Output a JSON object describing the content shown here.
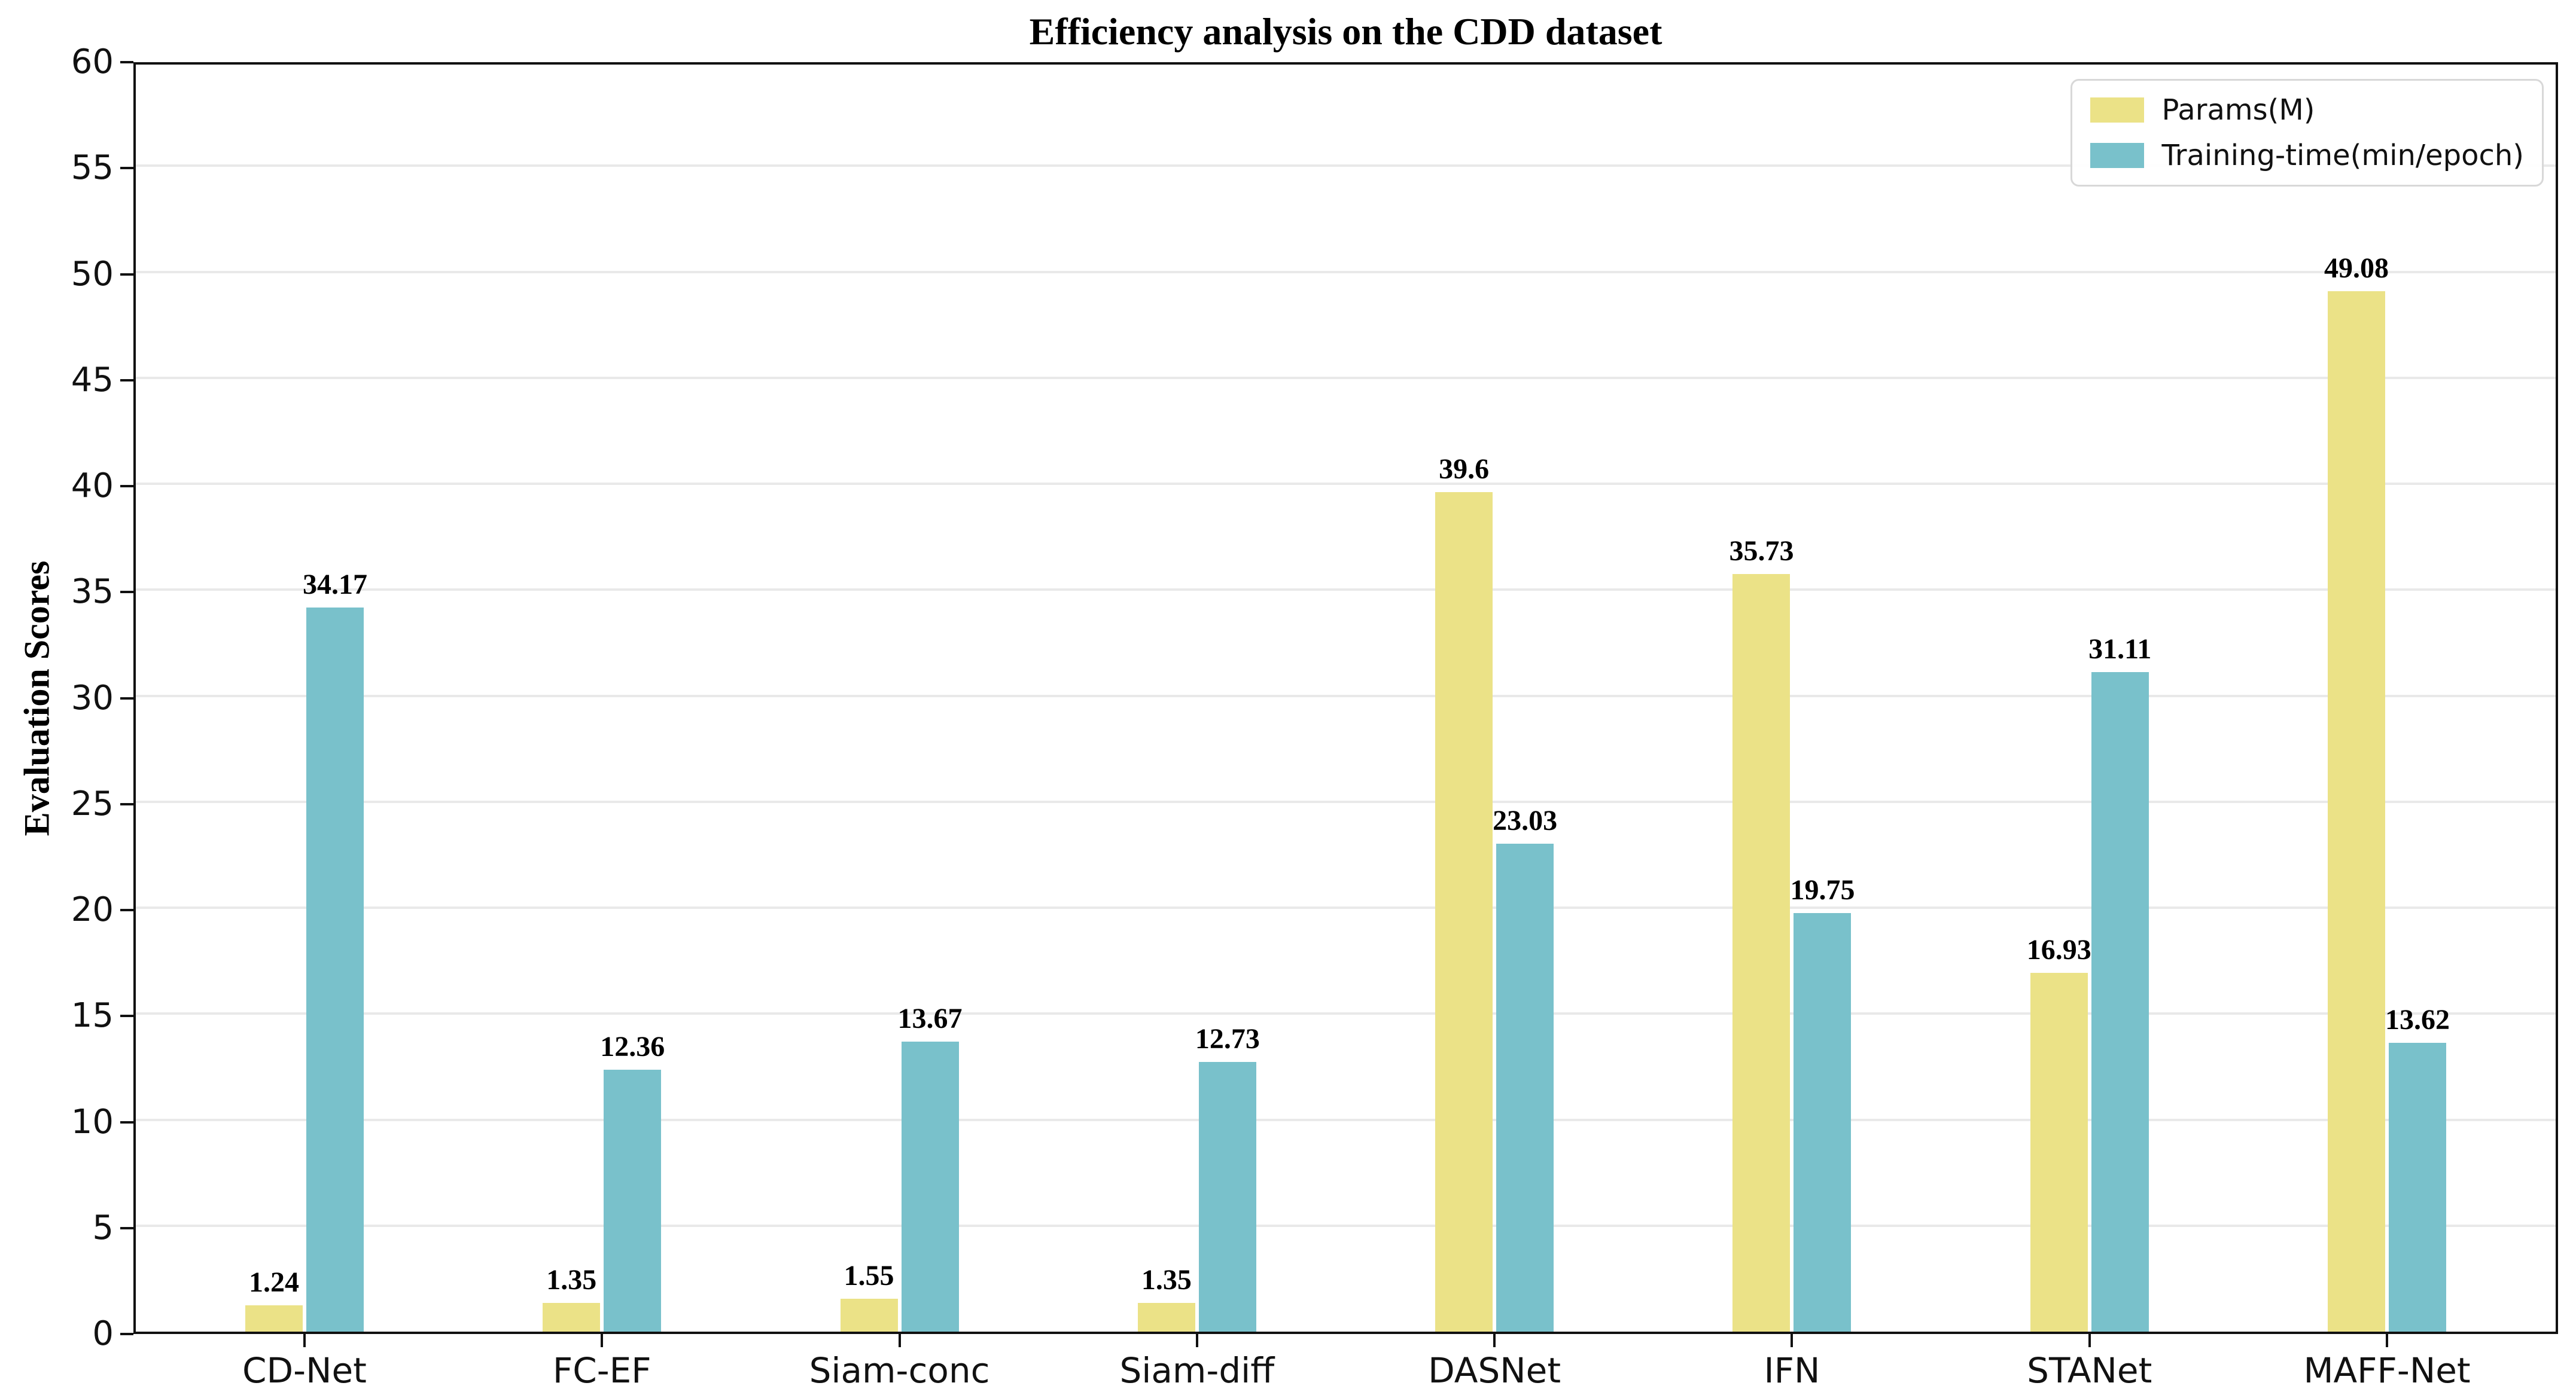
{
  "chart_data": {
    "type": "bar",
    "title": "Efficiency analysis on the CDD dataset",
    "xlabel": "",
    "ylabel": "Evaluation Scores",
    "categories": [
      "CD-Net",
      "FC-EF",
      "Siam-conc",
      "Siam-diff",
      "DASNet",
      "IFN",
      "STANet",
      "MAFF-Net"
    ],
    "series": [
      {
        "name": "Params(M)",
        "color": "#ebe287",
        "values": [
          1.24,
          1.35,
          1.55,
          1.35,
          39.6,
          35.73,
          16.93,
          49.08
        ]
      },
      {
        "name": "Training-time(min/epoch)",
        "color": "#79c1cb",
        "values": [
          34.17,
          12.36,
          13.67,
          12.73,
          23.03,
          19.75,
          31.11,
          13.62
        ]
      }
    ],
    "ylim": [
      0,
      60
    ],
    "ytick_step": 5,
    "yticks": [
      0,
      5,
      10,
      15,
      20,
      25,
      30,
      35,
      40,
      45,
      50,
      55,
      60
    ],
    "grid": "horizontal",
    "legend_position": "upper right",
    "colors": {
      "grid": "#e9e9e9",
      "axis": "#111111",
      "background": "#ffffff",
      "text": "#000000"
    }
  }
}
